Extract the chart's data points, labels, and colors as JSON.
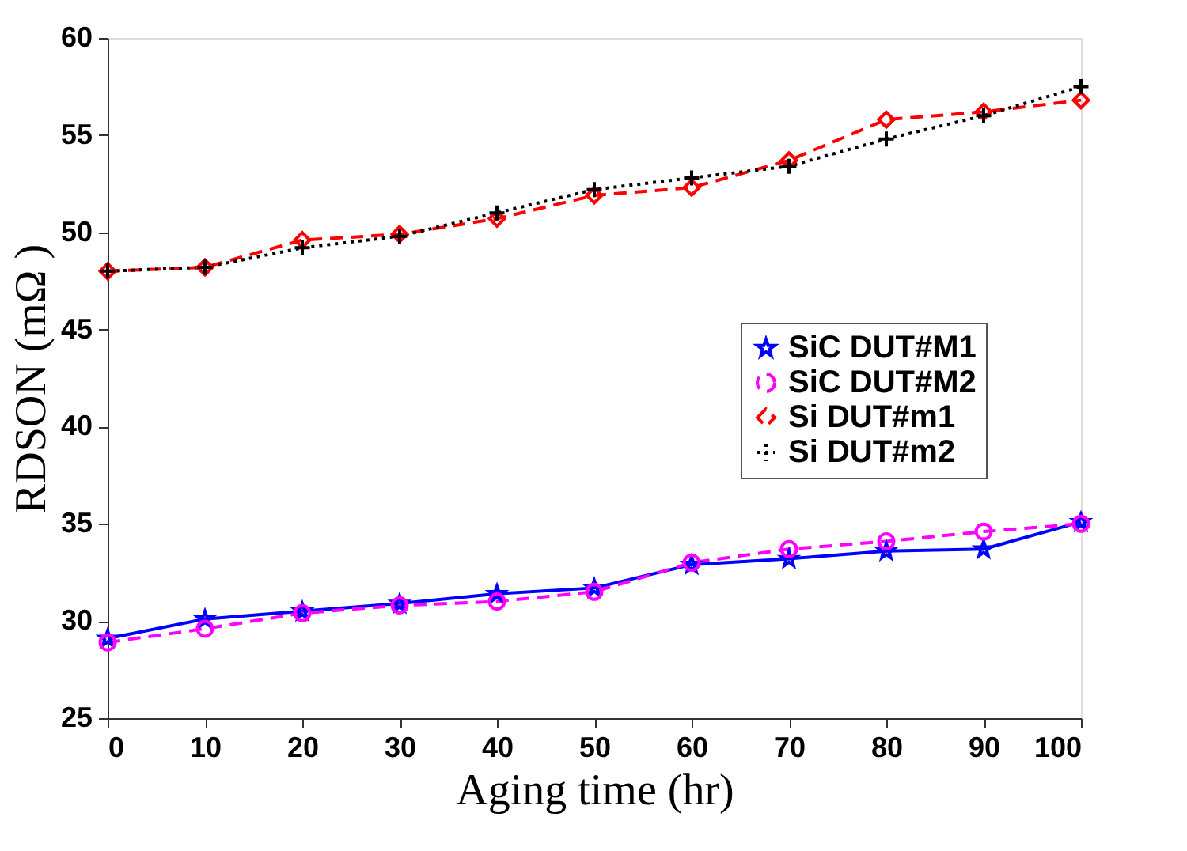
{
  "chart_data": {
    "type": "line",
    "xlabel": "Aging time (hr)",
    "ylabel": "RDSON (mΩ )",
    "x": [
      0,
      10,
      20,
      30,
      40,
      50,
      60,
      70,
      80,
      90,
      100
    ],
    "xlim": [
      0,
      100
    ],
    "xticks": [
      0,
      10,
      20,
      30,
      40,
      50,
      60,
      70,
      80,
      90,
      100
    ],
    "ylim": [
      25,
      60
    ],
    "yticks": [
      25,
      30,
      35,
      40,
      45,
      50,
      55,
      60
    ],
    "grid": false,
    "legend": "right",
    "series": [
      {
        "name": "SiC DUT#M1",
        "color": "#0000ff",
        "marker": "star",
        "line_style": "solid",
        "values": [
          29.1,
          30.1,
          30.5,
          30.9,
          31.4,
          31.7,
          32.9,
          33.2,
          33.6,
          33.7,
          35.1
        ]
      },
      {
        "name": "SiC DUT#M2",
        "color": "#ff00ff",
        "marker": "circle",
        "line_style": "dashed",
        "values": [
          28.9,
          29.6,
          30.4,
          30.8,
          31.0,
          31.5,
          33.0,
          33.7,
          34.1,
          34.6,
          35.0
        ]
      },
      {
        "name": "Si DUT#m1",
        "color": "#ff0000",
        "marker": "diamond",
        "line_style": "dashed",
        "values": [
          48.0,
          48.2,
          49.6,
          49.9,
          50.7,
          51.9,
          52.3,
          53.7,
          55.8,
          56.2,
          56.8
        ]
      },
      {
        "name": "Si DUT#m2",
        "color": "#000000",
        "marker": "cross",
        "line_style": "dotted",
        "values": [
          48.0,
          48.2,
          49.2,
          49.8,
          51.0,
          52.2,
          52.8,
          53.4,
          54.8,
          56.0,
          57.5
        ]
      }
    ]
  }
}
